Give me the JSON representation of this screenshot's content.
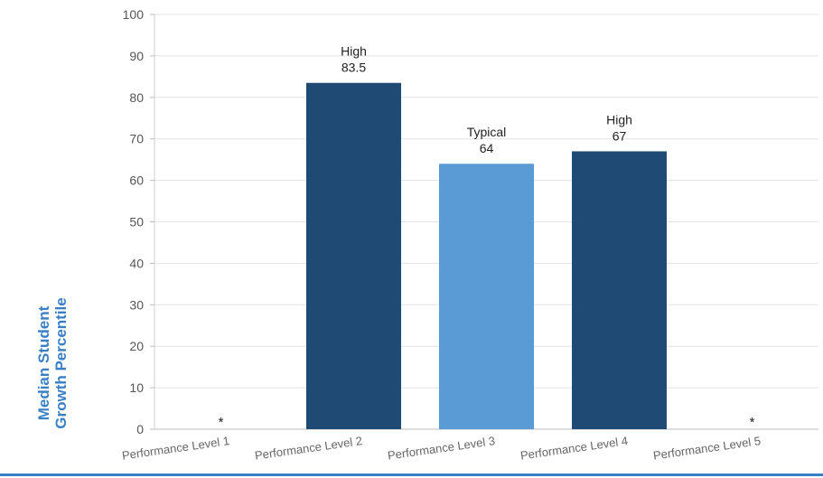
{
  "chart_data": {
    "type": "bar",
    "ylabel": "Median Student Growth Percentile",
    "ylabel_lines": [
      "Median Student",
      "Growth Percentile"
    ],
    "ylim": [
      0,
      100
    ],
    "yticks": [
      0,
      10,
      20,
      30,
      40,
      50,
      60,
      70,
      80,
      90,
      100
    ],
    "categories": [
      "Performance Level 1",
      "Performance Level 2",
      "Performance Level 3",
      "Performance Level 4",
      "Performance Level 5"
    ],
    "values": [
      null,
      83.5,
      64,
      67,
      null
    ],
    "bar_labels": [
      "",
      "High",
      "Typical",
      "High",
      ""
    ],
    "value_labels": [
      "*",
      "83.5",
      "64",
      "67",
      "*"
    ],
    "bar_colors": [
      "#1f4a73",
      "#1f4a73",
      "#5b9bd5",
      "#1f4a73",
      "#1f4a73"
    ],
    "grid": true,
    "legend": "none"
  }
}
